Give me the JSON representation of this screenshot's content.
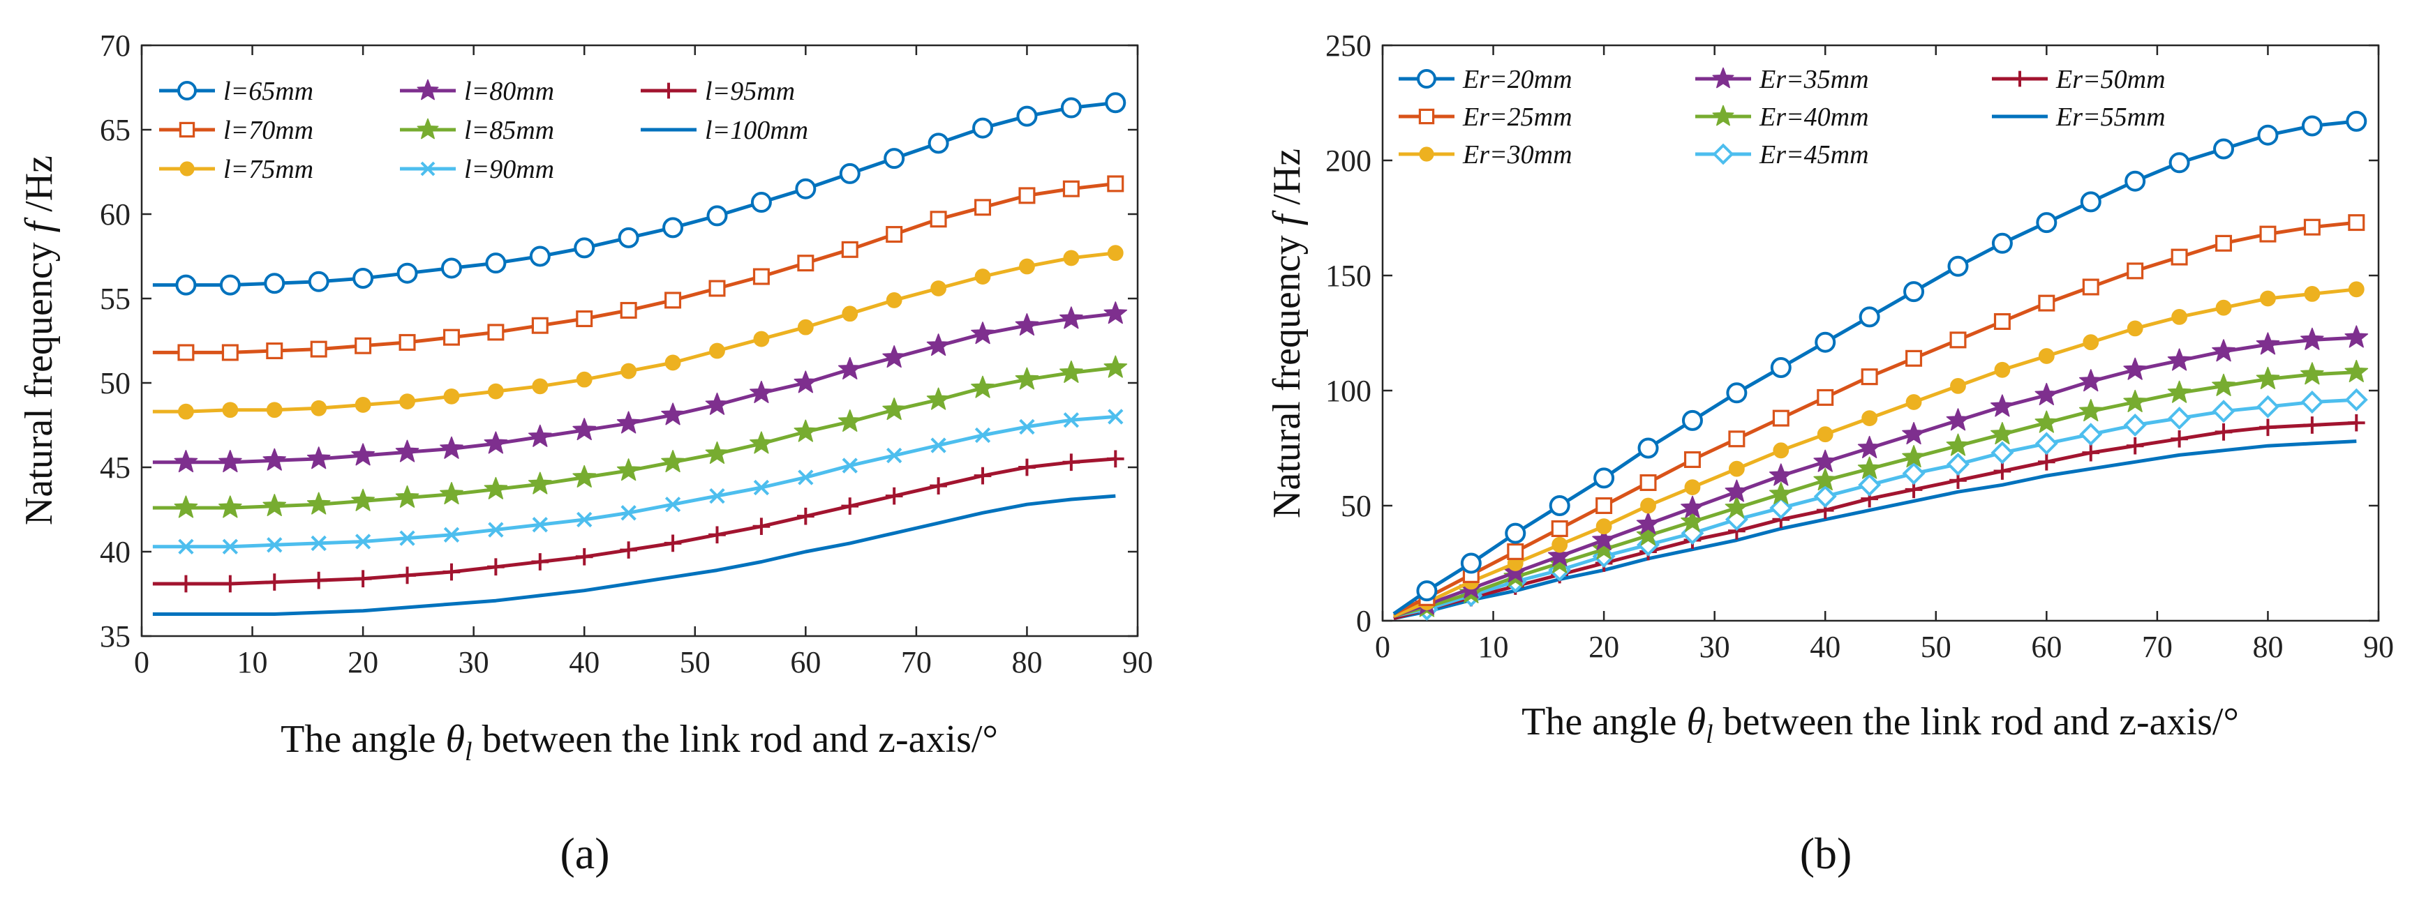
{
  "figure": {
    "panel_labels": [
      "(a)",
      "(b)"
    ]
  },
  "chart_data": [
    {
      "type": "line",
      "panel": "(a)",
      "title": "",
      "xlabel_parts": [
        "The angle ",
        "θ",
        "l",
        " between the link rod and z-axis/°"
      ],
      "ylabel_parts": [
        "Natural frequency ",
        "f",
        " /Hz"
      ],
      "xlim": [
        0,
        90
      ],
      "ylim": [
        35,
        70
      ],
      "xticks": [
        0,
        10,
        20,
        30,
        40,
        50,
        60,
        70,
        80,
        90
      ],
      "yticks": [
        35,
        40,
        45,
        50,
        55,
        60,
        65,
        70
      ],
      "grid": false,
      "legend_position": "top-left",
      "legend_columns": 3,
      "x": [
        1,
        4,
        8,
        12,
        16,
        20,
        24,
        28,
        32,
        36,
        40,
        44,
        48,
        52,
        56,
        60,
        64,
        68,
        72,
        76,
        80,
        84,
        88
      ],
      "marker_x": [
        4,
        8,
        12,
        16,
        20,
        24,
        28,
        32,
        36,
        40,
        44,
        48,
        52,
        56,
        60,
        64,
        68,
        72,
        76,
        80,
        84,
        88
      ],
      "series": [
        {
          "name": "l=65mm",
          "color": "#0072BD",
          "marker": "circle",
          "values": [
            55.8,
            55.8,
            55.8,
            55.9,
            56.0,
            56.2,
            56.5,
            56.8,
            57.1,
            57.5,
            58.0,
            58.6,
            59.2,
            59.9,
            60.7,
            61.5,
            62.4,
            63.3,
            64.2,
            65.1,
            65.8,
            66.3,
            66.6
          ]
        },
        {
          "name": "l=70mm",
          "color": "#D95319",
          "marker": "square",
          "values": [
            51.8,
            51.8,
            51.8,
            51.9,
            52.0,
            52.2,
            52.4,
            52.7,
            53.0,
            53.4,
            53.8,
            54.3,
            54.9,
            55.6,
            56.3,
            57.1,
            57.9,
            58.8,
            59.7,
            60.4,
            61.1,
            61.5,
            61.8
          ]
        },
        {
          "name": "l=75mm",
          "color": "#EDB120",
          "marker": "filled-circle",
          "values": [
            48.3,
            48.3,
            48.4,
            48.4,
            48.5,
            48.7,
            48.9,
            49.2,
            49.5,
            49.8,
            50.2,
            50.7,
            51.2,
            51.9,
            52.6,
            53.3,
            54.1,
            54.9,
            55.6,
            56.3,
            56.9,
            57.4,
            57.7
          ]
        },
        {
          "name": "l=80mm",
          "color": "#7E2F8E",
          "marker": "star",
          "values": [
            45.3,
            45.3,
            45.3,
            45.4,
            45.5,
            45.7,
            45.9,
            46.1,
            46.4,
            46.8,
            47.2,
            47.6,
            48.1,
            48.7,
            49.4,
            50.0,
            50.8,
            51.5,
            52.2,
            52.9,
            53.4,
            53.8,
            54.1
          ]
        },
        {
          "name": "l=85mm",
          "color": "#77AC30",
          "marker": "star",
          "values": [
            42.6,
            42.6,
            42.6,
            42.7,
            42.8,
            43.0,
            43.2,
            43.4,
            43.7,
            44.0,
            44.4,
            44.8,
            45.3,
            45.8,
            46.4,
            47.1,
            47.7,
            48.4,
            49.0,
            49.7,
            50.2,
            50.6,
            50.9
          ]
        },
        {
          "name": "l=90mm",
          "color": "#4DBEEE",
          "marker": "x",
          "values": [
            40.3,
            40.3,
            40.3,
            40.4,
            40.5,
            40.6,
            40.8,
            41.0,
            41.3,
            41.6,
            41.9,
            42.3,
            42.8,
            43.3,
            43.8,
            44.4,
            45.1,
            45.7,
            46.3,
            46.9,
            47.4,
            47.8,
            48.0
          ]
        },
        {
          "name": "l=95mm",
          "color": "#A2142F",
          "marker": "plus",
          "values": [
            38.1,
            38.1,
            38.1,
            38.2,
            38.3,
            38.4,
            38.6,
            38.8,
            39.1,
            39.4,
            39.7,
            40.1,
            40.5,
            41.0,
            41.5,
            42.1,
            42.7,
            43.3,
            43.9,
            44.5,
            45.0,
            45.3,
            45.5
          ]
        },
        {
          "name": "l=100mm",
          "color": "#0072BD",
          "marker": "none",
          "values": [
            36.3,
            36.3,
            36.3,
            36.3,
            36.4,
            36.5,
            36.7,
            36.9,
            37.1,
            37.4,
            37.7,
            38.1,
            38.5,
            38.9,
            39.4,
            40.0,
            40.5,
            41.1,
            41.7,
            42.3,
            42.8,
            43.1,
            43.3
          ]
        }
      ]
    },
    {
      "type": "line",
      "panel": "(b)",
      "title": "",
      "xlabel_parts": [
        "The angle ",
        "θ",
        "l",
        " between the link rod and z-axis/°"
      ],
      "ylabel_parts": [
        "Natural frequency ",
        "f",
        " /Hz"
      ],
      "xlim": [
        0,
        90
      ],
      "ylim": [
        0,
        250
      ],
      "xticks": [
        0,
        10,
        20,
        30,
        40,
        50,
        60,
        70,
        80,
        90
      ],
      "yticks": [
        0,
        50,
        100,
        150,
        200,
        250
      ],
      "grid": false,
      "legend_position": "top-left",
      "legend_columns": 3,
      "x": [
        1,
        4,
        8,
        12,
        16,
        20,
        24,
        28,
        32,
        36,
        40,
        44,
        48,
        52,
        56,
        60,
        64,
        68,
        72,
        76,
        80,
        84,
        88
      ],
      "marker_x": [
        4,
        8,
        12,
        16,
        20,
        24,
        28,
        32,
        36,
        40,
        44,
        48,
        52,
        56,
        60,
        64,
        68,
        72,
        76,
        80,
        84,
        88
      ],
      "series": [
        {
          "name": "Er=20mm",
          "color": "#0072BD",
          "marker": "circle",
          "values": [
            3,
            13,
            25,
            38,
            50,
            62,
            75,
            87,
            99,
            110,
            121,
            132,
            143,
            154,
            164,
            173,
            182,
            191,
            199,
            205,
            211,
            215,
            217
          ]
        },
        {
          "name": "Er=25mm",
          "color": "#D95319",
          "marker": "square",
          "values": [
            3,
            10,
            20,
            30,
            40,
            50,
            60,
            70,
            79,
            88,
            97,
            106,
            114,
            122,
            130,
            138,
            145,
            152,
            158,
            164,
            168,
            171,
            173
          ]
        },
        {
          "name": "Er=30mm",
          "color": "#EDB120",
          "marker": "filled-circle",
          "values": [
            2,
            8,
            17,
            25,
            33,
            41,
            50,
            58,
            66,
            74,
            81,
            88,
            95,
            102,
            109,
            115,
            121,
            127,
            132,
            136,
            140,
            142,
            144
          ]
        },
        {
          "name": "Er=35mm",
          "color": "#7E2F8E",
          "marker": "star",
          "values": [
            2,
            7,
            14,
            21,
            28,
            35,
            42,
            49,
            56,
            63,
            69,
            75,
            81,
            87,
            93,
            98,
            104,
            109,
            113,
            117,
            120,
            122,
            123
          ]
        },
        {
          "name": "Er=40mm",
          "color": "#77AC30",
          "marker": "star",
          "values": [
            2,
            6,
            12,
            19,
            25,
            31,
            37,
            43,
            49,
            55,
            61,
            66,
            71,
            76,
            81,
            86,
            91,
            95,
            99,
            102,
            105,
            107,
            108
          ]
        },
        {
          "name": "Er=45mm",
          "color": "#4DBEEE",
          "marker": "diamond",
          "values": [
            2,
            5,
            11,
            17,
            22,
            28,
            33,
            38,
            44,
            49,
            54,
            59,
            64,
            68,
            73,
            77,
            81,
            85,
            88,
            91,
            93,
            95,
            96
          ]
        },
        {
          "name": "Er=50mm",
          "color": "#A2142F",
          "marker": "plus",
          "values": [
            1,
            5,
            10,
            15,
            20,
            25,
            30,
            35,
            39,
            44,
            48,
            53,
            57,
            61,
            65,
            69,
            73,
            76,
            79,
            82,
            84,
            85,
            86
          ]
        },
        {
          "name": "Er=55mm",
          "color": "#0072BD",
          "marker": "none",
          "values": [
            1,
            4,
            9,
            13,
            18,
            22,
            27,
            31,
            35,
            40,
            44,
            48,
            52,
            56,
            59,
            63,
            66,
            69,
            72,
            74,
            76,
            77,
            78
          ]
        }
      ]
    }
  ]
}
